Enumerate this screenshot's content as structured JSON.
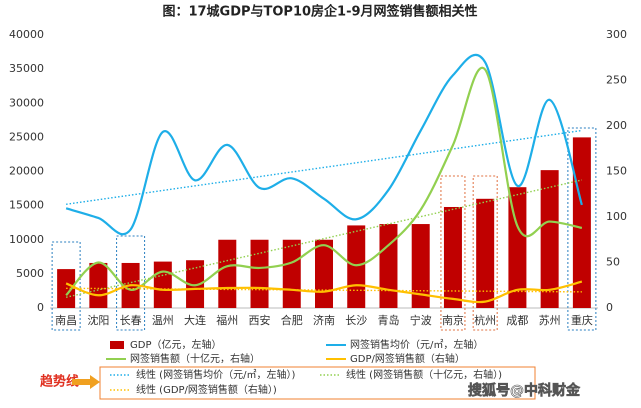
{
  "chart_data": {
    "type": "combo",
    "title": "图：17城GDP与TOP10房企1-9月网签销售额相关性",
    "categories": [
      "南昌",
      "沈阳",
      "长春",
      "温州",
      "大连",
      "福州",
      "西安",
      "合肥",
      "济南",
      "长沙",
      "青岛",
      "宁波",
      "南京",
      "杭州",
      "成都",
      "苏州",
      "重庆"
    ],
    "ylim": [
      0,
      40000
    ],
    "yticks": [
      0,
      5000,
      10000,
      15000,
      20000,
      25000,
      30000,
      35000,
      40000
    ],
    "y2lim": [
      0,
      300
    ],
    "y2ticks": [
      0,
      50,
      100,
      150,
      200,
      250,
      300
    ],
    "series": [
      {
        "name": "GDP（亿元，左轴）",
        "kind": "bar",
        "color": "#c00000",
        "values": [
          5700,
          6600,
          6600,
          6800,
          7000,
          10000,
          10000,
          10000,
          10000,
          12100,
          12300,
          12300,
          14800,
          16000,
          17700,
          20200,
          25000
        ]
      },
      {
        "name": "网签销售均价（元/㎡，左轴）",
        "kind": "line",
        "color": "#1eaee8",
        "trendline": "线性 (网签销售均价（元/㎡，左轴）)",
        "values": [
          14600,
          13200,
          11500,
          25800,
          18700,
          23900,
          17600,
          19000,
          16000,
          13000,
          17300,
          26000,
          34100,
          36000,
          17900,
          30500,
          15100
        ]
      },
      {
        "name": "网签销售额（十亿元，右轴）",
        "kind": "line",
        "color": "#92d050",
        "axis": "y2",
        "trendline": "线性 (网签销售额（十亿元，右轴）)",
        "values": [
          14,
          50,
          20,
          40,
          25,
          46,
          44,
          50,
          69,
          47,
          69,
          108,
          179,
          262,
          90,
          95,
          88
        ]
      },
      {
        "name": "GDP/网签销售额（右轴）",
        "kind": "line",
        "color": "#ffc000",
        "axis": "y2",
        "trendline": "线性 (GDP/网签销售额（右轴）)",
        "values": [
          27,
          14,
          25,
          20,
          21,
          22,
          22,
          20,
          18,
          25,
          20,
          15,
          10,
          7,
          20,
          20,
          29
        ]
      }
    ],
    "annotations": [
      "趋势线",
      "搜狐号@中科财金"
    ]
  }
}
